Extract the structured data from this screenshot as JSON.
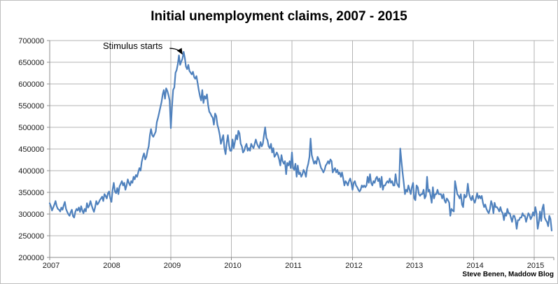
{
  "chart_data": {
    "type": "line",
    "title": "Initial unemployment claims, 2007 - 2015",
    "series_name": "Initial unemployment claims (weekly)",
    "credit": "Steve Benen, Maddow Blog",
    "annotation": {
      "text": "Stimulus starts",
      "points_to": {
        "year": 2009.21,
        "value": 674000
      }
    },
    "line_color": "#4F81BD",
    "gridline_color": "#b3b3b3",
    "axis_color": "#8c8c8c",
    "legend": "none",
    "grid": "on",
    "x_axis": {
      "ticks": [
        2007,
        2008,
        2009,
        2010,
        2011,
        2012,
        2013,
        2014,
        2015
      ],
      "start_year": 2007,
      "frequency": "weekly",
      "end": 2015.3
    },
    "y_axis": {
      "min": 200000,
      "max": 700000,
      "tick_step": 50000,
      "tick_labels": [
        "200000",
        "250000",
        "300000",
        "350000",
        "400000",
        "450000",
        "500000",
        "550000",
        "600000",
        "650000",
        "700000"
      ]
    },
    "values": [
      325000,
      318000,
      308000,
      315000,
      322000,
      330000,
      318000,
      312000,
      310000,
      306000,
      315000,
      310000,
      320000,
      328000,
      312000,
      305000,
      300000,
      296000,
      304000,
      310000,
      295000,
      292000,
      305000,
      312000,
      308000,
      315000,
      305000,
      318000,
      308000,
      302000,
      312000,
      306000,
      325000,
      315000,
      320000,
      330000,
      320000,
      312000,
      305000,
      316000,
      330000,
      322000,
      326000,
      332000,
      336000,
      340000,
      330000,
      346000,
      342000,
      336000,
      348000,
      352000,
      336000,
      328000,
      356000,
      372000,
      352000,
      348000,
      360000,
      346000,
      364000,
      370000,
      376000,
      366000,
      372000,
      356000,
      366000,
      380000,
      372000,
      366000,
      376000,
      372000,
      386000,
      380000,
      390000,
      386000,
      396000,
      406000,
      400000,
      420000,
      432000,
      440000,
      426000,
      432000,
      446000,
      456000,
      482000,
      496000,
      482000,
      478000,
      484000,
      490000,
      512000,
      522000,
      534000,
      546000,
      558000,
      576000,
      586000,
      566000,
      590000,
      584000,
      574000,
      562000,
      498000,
      548000,
      586000,
      592000,
      626000,
      632000,
      646000,
      666000,
      644000,
      652000,
      658000,
      674000,
      660000,
      640000,
      634000,
      644000,
      630000,
      626000,
      622000,
      628000,
      616000,
      612000,
      618000,
      602000,
      586000,
      572000,
      562000,
      586000,
      556000,
      572000,
      566000,
      576000,
      552000,
      536000,
      532000,
      526000,
      522000,
      506000,
      532000,
      526000,
      506000,
      496000,
      482000,
      462000,
      472000,
      482000,
      452000,
      438000,
      464000,
      482000,
      458000,
      446000,
      446000,
      472000,
      452000,
      466000,
      482000,
      472000,
      492000,
      486000,
      462000,
      456000,
      442000,
      446000,
      456000,
      462000,
      446000,
      452000,
      446000,
      462000,
      456000,
      452000,
      462000,
      472000,
      462000,
      456000,
      452000,
      466000,
      456000,
      462000,
      482000,
      500000,
      476000,
      470000,
      456000,
      452000,
      462000,
      442000,
      452000,
      432000,
      436000,
      442000,
      436000,
      426000,
      412000,
      436000,
      422000,
      416000,
      422000,
      392000,
      418000,
      412000,
      422000,
      406000,
      442000,
      406000,
      402000,
      416000,
      386000,
      412000,
      392000,
      396000,
      386000,
      392000,
      402000,
      396000,
      386000,
      406000,
      416000,
      432000,
      474000,
      436000,
      426000,
      416000,
      422000,
      416000,
      432000,
      426000,
      416000,
      406000,
      402000,
      396000,
      402000,
      412000,
      416000,
      422000,
      416000,
      426000,
      422000,
      396000,
      402000,
      406000,
      396000,
      402000,
      392000,
      396000,
      386000,
      396000,
      382000,
      366000,
      376000,
      372000,
      366000,
      376000,
      382000,
      372000,
      356000,
      372000,
      376000,
      366000,
      362000,
      356000,
      352000,
      356000,
      366000,
      362000,
      366000,
      362000,
      366000,
      386000,
      372000,
      392000,
      372000,
      366000,
      376000,
      372000,
      382000,
      386000,
      376000,
      382000,
      362000,
      386000,
      356000,
      366000,
      366000,
      372000,
      376000,
      372000,
      382000,
      372000,
      376000,
      366000,
      366000,
      392000,
      372000,
      366000,
      362000,
      451000,
      422000,
      396000,
      372000,
      346000,
      356000,
      352000,
      366000,
      356000,
      346000,
      362000,
      372000,
      336000,
      332000,
      366000,
      362000,
      346000,
      342000,
      346000,
      346000,
      356000,
      336000,
      342000,
      386000,
      352000,
      356000,
      342000,
      326000,
      362000,
      336000,
      346000,
      346000,
      356000,
      346000,
      346000,
      346000,
      336000,
      346000,
      332000,
      326000,
      336000,
      332000,
      326000,
      296000,
      312000,
      308000,
      306000,
      376000,
      362000,
      346000,
      342000,
      336000,
      346000,
      322000,
      316000,
      345000,
      338000,
      342000,
      370000,
      348000,
      338000,
      332000,
      342000,
      332000,
      326000,
      336000,
      348000,
      336000,
      342000,
      336000,
      342000,
      326000,
      316000,
      322000,
      312000,
      306000,
      302000,
      312000,
      330000,
      322000,
      302000,
      326000,
      316000,
      316000,
      312000,
      306000,
      316000,
      306000,
      302000,
      286000,
      302000,
      296000,
      312000,
      302000,
      302000,
      292000,
      282000,
      296000,
      296000,
      286000,
      266000,
      286000,
      286000,
      292000,
      292000,
      302000,
      296000,
      296000,
      282000,
      292000,
      302000,
      298000,
      288000,
      294000,
      304000,
      296000,
      316000,
      302000,
      266000,
      282000,
      306000,
      284000,
      312000,
      322000,
      292000,
      286000,
      282000,
      272000,
      296000,
      288000,
      262000
    ]
  }
}
